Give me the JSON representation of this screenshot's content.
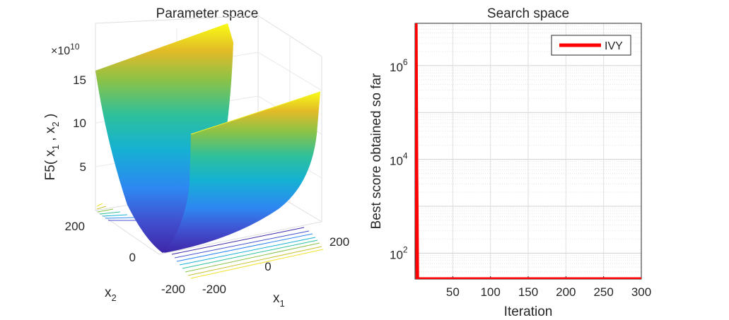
{
  "chart_data": [
    {
      "type": "surface",
      "title": "Parameter space",
      "zlabel": {
        "name": "F5( x",
        "sub1": "1",
        "mid": " , x",
        "sub2": "2",
        "end": " )"
      },
      "xlabel": {
        "name": "x",
        "sub": "1"
      },
      "ylabel": {
        "name": "x",
        "sub": "2"
      },
      "exponent": {
        "base": "×10",
        "power": "10"
      },
      "x_ticks": [
        "-200",
        "0",
        "200"
      ],
      "y_ticks": [
        "-200",
        "0",
        "200"
      ],
      "z_ticks": [
        "5",
        "10",
        "15"
      ],
      "xlim": [
        -200,
        200
      ],
      "ylim": [
        -200,
        200
      ],
      "zlim": [
        0,
        16
      ],
      "colormap": "parula"
    },
    {
      "type": "line",
      "title": "Search space",
      "xlabel": "Iteration",
      "ylabel": "Best score obtained so far",
      "yscale": "log",
      "xlim": [
        0,
        300
      ],
      "ylim": [
        28,
        8000000
      ],
      "x_ticks": [
        50,
        100,
        150,
        200,
        250,
        300
      ],
      "y_ticks": [
        {
          "value": 100,
          "base": "10",
          "power": "2"
        },
        {
          "value": 10000,
          "base": "10",
          "power": "4"
        },
        {
          "value": 1000000,
          "base": "10",
          "power": "6"
        }
      ],
      "grid": true,
      "legend_position": "top-right",
      "series": [
        {
          "name": "IVY",
          "color": "#ff0000",
          "x": [
            1,
            2,
            3,
            300
          ],
          "y": [
            8000000,
            5000,
            28,
            28
          ]
        }
      ]
    }
  ]
}
